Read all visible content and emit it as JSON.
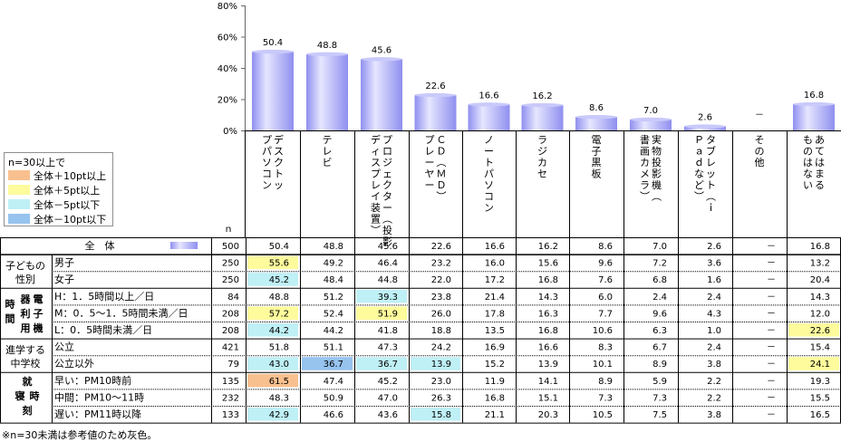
{
  "chart_data": {
    "type": "bar",
    "ylim": [
      0,
      80
    ],
    "y_ticks": [
      "80%",
      "60%",
      "40%",
      "20%",
      "0%"
    ],
    "categories": [
      [
        "デ",
        "ス",
        "ク",
        "ト",
        "ッ",
        "プ",
        "パ",
        "ソ",
        "コ",
        "ン"
      ],
      [
        "テ",
        "レ",
        "ビ"
      ],
      [
        "プ",
        "ロ",
        "ジ",
        "ェ",
        "ク",
        "タ",
        "ー",
        "︵",
        "投",
        "影",
        "デ",
        "ィ",
        "ス",
        "プ",
        "レ",
        "イ",
        "装",
        "置",
        "︶"
      ],
      [
        "Ｃ",
        "Ｄ",
        "︵",
        "Ｍ",
        "Ｄ",
        "︶",
        "プ",
        "レ",
        "ー",
        "ヤ",
        "ー"
      ],
      [
        "ノ",
        "ー",
        "ト",
        "パ",
        "ソ",
        "コ",
        "ン"
      ],
      [
        "ラ",
        "ジ",
        "カ",
        "セ"
      ],
      [
        "電",
        "子",
        "黒",
        "板"
      ],
      [
        "実",
        "物",
        "投",
        "影",
        "機",
        "︵",
        "書",
        "画",
        "カ",
        "メ",
        "ラ",
        "︶"
      ],
      [
        "タ",
        "ブ",
        "レ",
        "ッ",
        "ト",
        "︵",
        "ｉ",
        "Ｐ",
        "ａ",
        "ｄ",
        "な",
        "ど",
        "︶"
      ],
      [
        "そ",
        "の",
        "他"
      ],
      [
        "あ",
        "て",
        "は",
        "ま",
        "る",
        "も",
        "の",
        "は",
        "な",
        "い"
      ]
    ],
    "values": [
      50.4,
      48.8,
      45.6,
      22.6,
      16.6,
      16.2,
      8.6,
      7.0,
      2.6,
      null,
      16.8
    ],
    "value_labels": [
      "50.4",
      "48.8",
      "45.6",
      "22.6",
      "16.6",
      "16.2",
      "8.6",
      "7.0",
      "2.6",
      "－",
      "16.8"
    ],
    "n_header": "ｎ",
    "table": {
      "total_row": {
        "label": "全　体",
        "n": "500",
        "cells": [
          "50.4",
          "48.8",
          "45.6",
          "22.6",
          "16.6",
          "16.2",
          "8.6",
          "7.0",
          "2.6",
          "－",
          "16.8"
        ]
      },
      "groups": [
        {
          "label": [
            "子どもの",
            "性別"
          ],
          "rows": [
            {
              "label": "男子",
              "n": "250",
              "cells": [
                "55.6",
                "49.2",
                "46.4",
                "23.2",
                "16.0",
                "15.6",
                "9.6",
                "7.2",
                "3.6",
                "－",
                "13.2"
              ],
              "hl": {
                "0": "y"
              }
            },
            {
              "label": "女子",
              "n": "250",
              "cells": [
                "45.2",
                "48.4",
                "44.8",
                "22.0",
                "17.2",
                "16.8",
                "7.6",
                "6.8",
                "1.6",
                "－",
                "20.4"
              ],
              "hl": {
                "0": "c"
              }
            }
          ]
        },
        {
          "label": [
            "時",
            "間"
          ],
          "label2": [
            "電",
            "子",
            "機",
            "器",
            "利",
            "用"
          ],
          "rows": [
            {
              "label": "H：1．5時間以上／日",
              "n": "84",
              "cells": [
                "48.8",
                "51.2",
                "39.3",
                "23.8",
                "21.4",
                "14.3",
                "6.0",
                "2.4",
                "2.4",
                "－",
                "14.3"
              ],
              "hl": {
                "2": "c"
              }
            },
            {
              "label": "M：0．5～1．5時間未満／日",
              "n": "208",
              "cells": [
                "57.2",
                "52.4",
                "51.9",
                "26.0",
                "17.8",
                "16.3",
                "7.7",
                "9.6",
                "4.3",
                "－",
                "12.0"
              ],
              "hl": {
                "0": "y",
                "2": "y"
              }
            },
            {
              "label": "L：0．5時間未満／日",
              "n": "208",
              "cells": [
                "44.2",
                "44.2",
                "41.8",
                "18.8",
                "13.5",
                "16.8",
                "10.6",
                "6.3",
                "1.0",
                "－",
                "22.6"
              ],
              "hl": {
                "0": "c",
                "10": "y"
              }
            }
          ]
        },
        {
          "label": [
            "進学する",
            "中学校"
          ],
          "rows": [
            {
              "label": "公立",
              "n": "421",
              "cells": [
                "51.8",
                "51.1",
                "47.3",
                "24.2",
                "16.9",
                "16.6",
                "8.3",
                "6.7",
                "2.4",
                "－",
                "15.4"
              ],
              "hl": {}
            },
            {
              "label": "公立以外",
              "n": "79",
              "cells": [
                "43.0",
                "36.7",
                "36.7",
                "13.9",
                "15.2",
                "13.9",
                "10.1",
                "8.9",
                "3.8",
                "－",
                "24.1"
              ],
              "hl": {
                "0": "c",
                "1": "b",
                "2": "c",
                "3": "c",
                "10": "y"
              }
            }
          ]
        },
        {
          "label": [
            "就",
            "寝",
            "時",
            "刻"
          ],
          "rows": [
            {
              "label": "早い：PM10時前",
              "n": "135",
              "cells": [
                "61.5",
                "47.4",
                "45.2",
                "23.0",
                "11.9",
                "14.1",
                "8.9",
                "5.9",
                "2.2",
                "－",
                "19.3"
              ],
              "hl": {
                "0": "o"
              }
            },
            {
              "label": "中間：PM10～11時",
              "n": "232",
              "cells": [
                "48.3",
                "50.9",
                "47.0",
                "26.3",
                "16.8",
                "15.1",
                "7.3",
                "7.3",
                "2.2",
                "－",
                "15.5"
              ],
              "hl": {}
            },
            {
              "label": "遅い：PM11時以降",
              "n": "133",
              "cells": [
                "42.9",
                "46.6",
                "43.6",
                "15.8",
                "21.1",
                "20.3",
                "10.5",
                "7.5",
                "3.8",
                "－",
                "16.5"
              ],
              "hl": {
                "0": "c",
                "3": "c"
              }
            }
          ]
        }
      ]
    }
  },
  "legend": {
    "title": "n=30以上で",
    "items": [
      {
        "label": "全体＋10pt以上",
        "color": "#f9c08f"
      },
      {
        "label": "全体＋5pt以上",
        "color": "#fdfb9c"
      },
      {
        "label": "全体－5pt以下",
        "color": "#bff0f6"
      },
      {
        "label": "全体－10pt以下",
        "color": "#97c3ef"
      }
    ]
  },
  "highlight_colors": {
    "o": "#f9c08f",
    "y": "#fdfb9c",
    "c": "#bff0f6",
    "b": "#97c3ef"
  },
  "bar_color_dark": "#8f8ff0",
  "bar_color_light": "#e6e6ff",
  "footnote": "※n=30未満は参考値のため灰色。"
}
